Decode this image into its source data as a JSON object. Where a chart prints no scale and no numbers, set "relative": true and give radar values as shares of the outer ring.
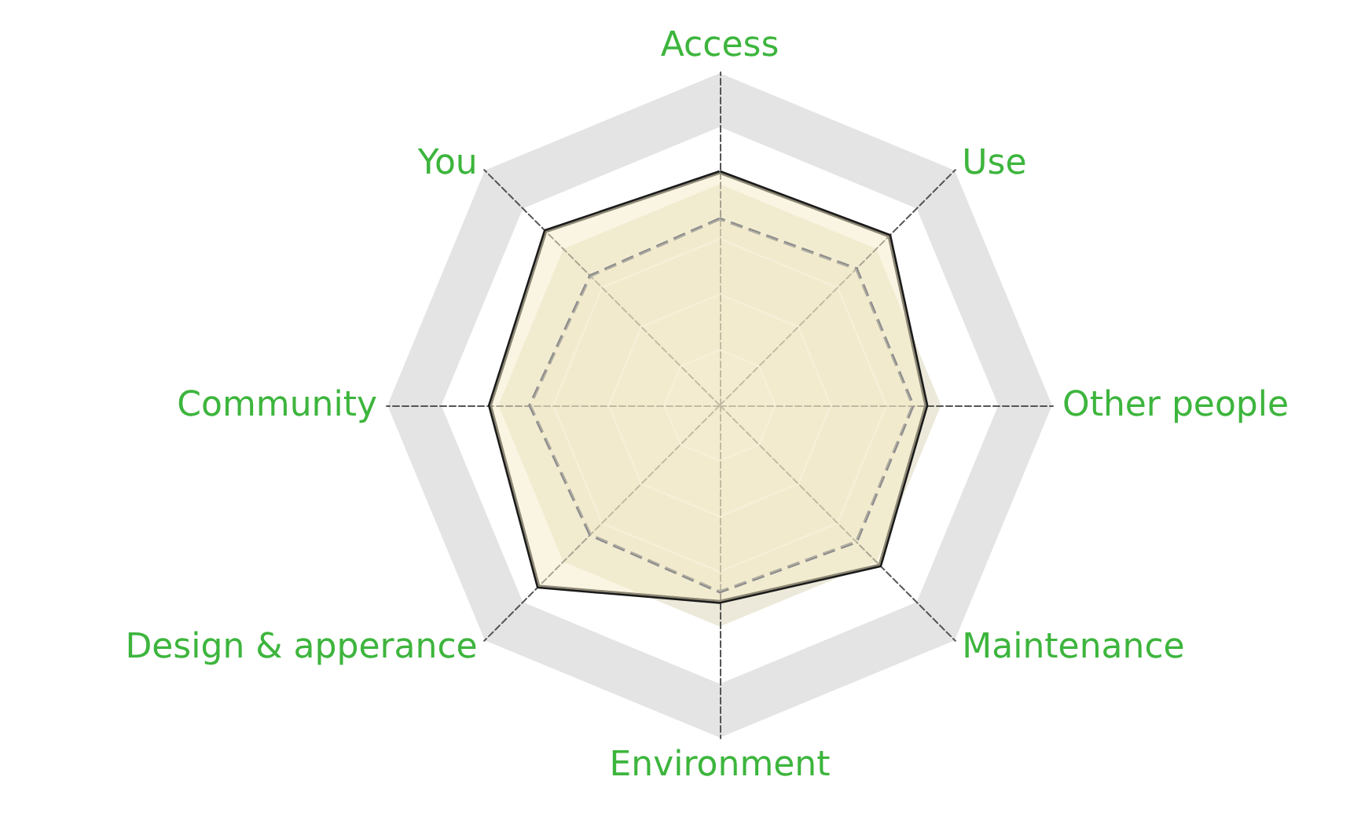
{
  "chart_data": {
    "type": "radar",
    "relative": true,
    "marker": "none",
    "categories": [
      "Access",
      "Use",
      "Other people",
      "Maintenance",
      "Environment",
      "Design & apperance",
      "Community",
      "You"
    ],
    "series": [
      {
        "color": "#1a1a1a",
        "line_style": "solid",
        "values": [
          0.7,
          0.72,
          0.62,
          0.68,
          0.59,
          0.77,
          0.69,
          0.74
        ]
      },
      {
        "color": "#8c8c8c",
        "line_style": "dashed",
        "values": [
          0.56,
          0.58,
          0.58,
          0.58,
          0.56,
          0.55,
          0.57,
          0.55
        ]
      }
    ]
  }
}
